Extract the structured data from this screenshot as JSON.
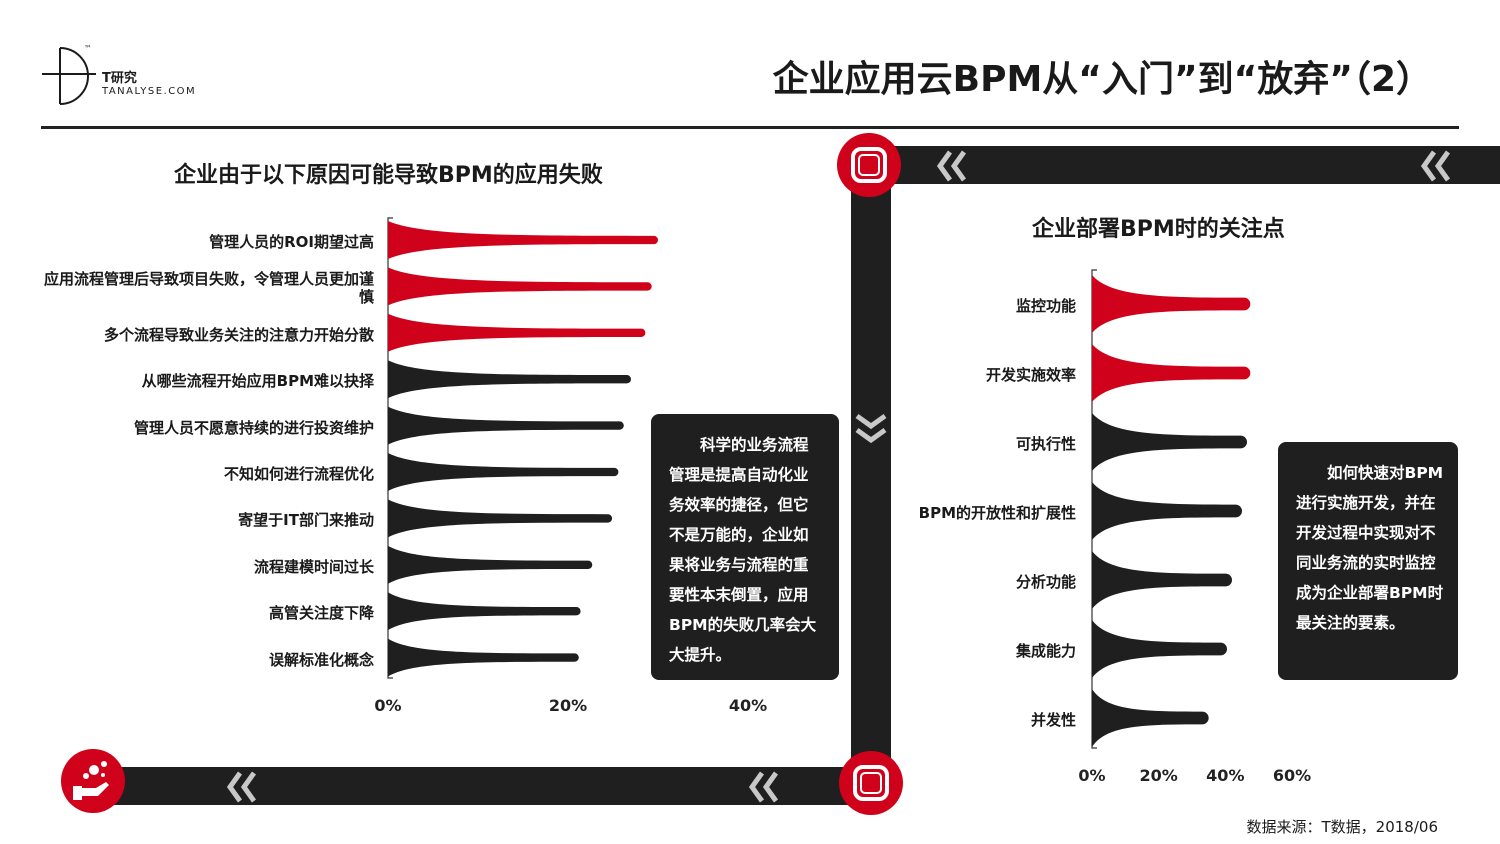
{
  "header": {
    "logo_name": "T研究",
    "logo_sub": "TANALYSE.COM",
    "logo_tm": "™",
    "title": "企业应用云BPM从“入门”到“放弃”（2）"
  },
  "colors": {
    "accent": "#d0021b",
    "dark": "#1f1f1f",
    "axis": "#333333"
  },
  "icons": [
    "frame-icon",
    "double-chevron-left-icon",
    "double-chevron-down-icon",
    "hand-coins-icon"
  ],
  "left_callout": "科学的业务流程管理是提高自动化业务效率的捷径，但它不是万能的，企业如果将业务与流程的重要性本末倒置，应用BPM的失败几率会大大提升。",
  "right_callout": "如何快速对BPM进行实施开发，并在开发过程中实现对不同业务流的实时监控成为企业部署BPM时最关注的要素。",
  "source": "数据来源：T数据，2018/06",
  "chart_data": [
    {
      "type": "bar",
      "orientation": "horizontal",
      "title": "企业由于以下原因可能导致BPM的应用失败",
      "categories": [
        "管理人员的ROI期望过高",
        "应用流程管理后导致项目失败，令管理人员更加谨慎",
        "多个流程导致业务关注的注意力开始分散",
        "从哪些流程开始应用BPM难以抉择",
        "管理人员不愿意持续的进行投资维护",
        "不知如何进行流程优化",
        "寄望于IT部门来推动",
        "流程建模时间过长",
        "高管关注度下降",
        "误解标准化概念"
      ],
      "values": [
        30,
        29.3,
        28.6,
        27,
        26.2,
        25.6,
        24.9,
        22.7,
        21.4,
        21.2
      ],
      "highlight": [
        true,
        true,
        true,
        false,
        false,
        false,
        false,
        false,
        false,
        false
      ],
      "xticks": [
        "0%",
        "20%",
        "40%"
      ],
      "xlim": [
        0,
        50
      ],
      "unit": "%"
    },
    {
      "type": "bar",
      "orientation": "horizontal",
      "title": "企业部署BPM时的关注点",
      "categories": [
        "监控功能",
        "开发实施效率",
        "可执行性",
        "BPM的开放性和扩展性",
        "分析功能",
        "集成能力",
        "并发性"
      ],
      "values": [
        47.5,
        47.5,
        46.5,
        45,
        42,
        40.5,
        35
      ],
      "highlight": [
        true,
        true,
        false,
        false,
        false,
        false,
        false
      ],
      "xticks": [
        "0%",
        "20%",
        "40%",
        "60%"
      ],
      "xlim": [
        0,
        60
      ],
      "unit": "%"
    }
  ]
}
